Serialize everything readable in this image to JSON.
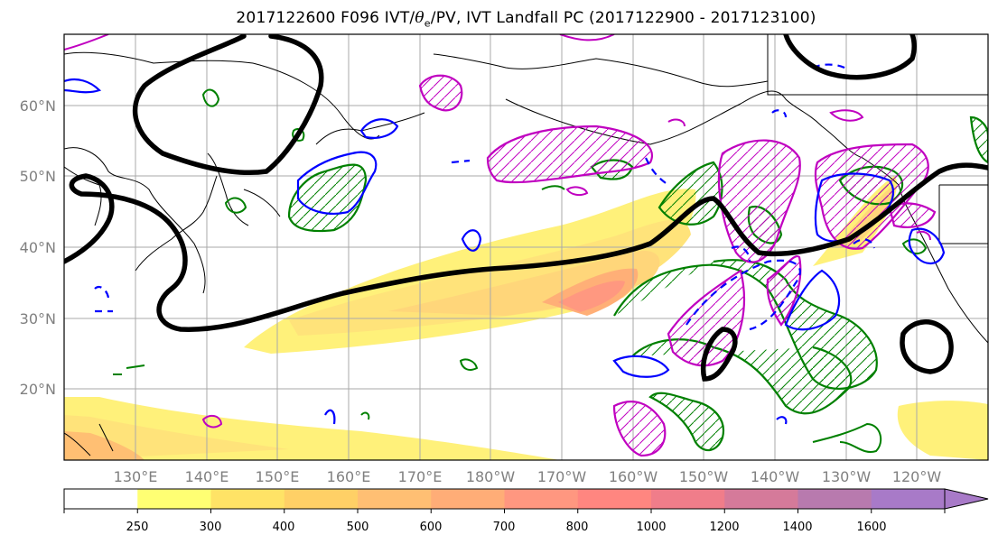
{
  "title": {
    "prefix": "2017122600 F096 IVT/",
    "theta": "θ",
    "sub": "e",
    "suffix": "/PV, IVT Landfall PC (2017122900 - 2017123100)"
  },
  "map": {
    "lat_labels": [
      "60°N",
      "50°N",
      "40°N",
      "30°N",
      "20°N"
    ],
    "lon_labels": [
      "130°E",
      "140°E",
      "150°E",
      "160°E",
      "170°E",
      "180°W",
      "170°W",
      "160°W",
      "150°W",
      "140°W",
      "130°W",
      "120°W"
    ]
  },
  "colorbar": {
    "ticks": [
      "250",
      "300",
      "400",
      "500",
      "600",
      "700",
      "800",
      "1000",
      "1200",
      "1400",
      "1600"
    ],
    "colors": [
      "#ffffff",
      "#ffff73",
      "#ffe366",
      "#ffd066",
      "#ffbf73",
      "#ffad77",
      "#ff9780",
      "#ff8680",
      "#f07d8a",
      "#d57a9a",
      "#b87aae",
      "#a87ac8"
    ]
  },
  "colors": {
    "ivt_jet": "#000000",
    "theta_e_pos": "#008000",
    "theta_e_neg": "#0000ff",
    "pv": "#c000c0",
    "coast": "#000000",
    "grid": "#a9a9a9"
  }
}
